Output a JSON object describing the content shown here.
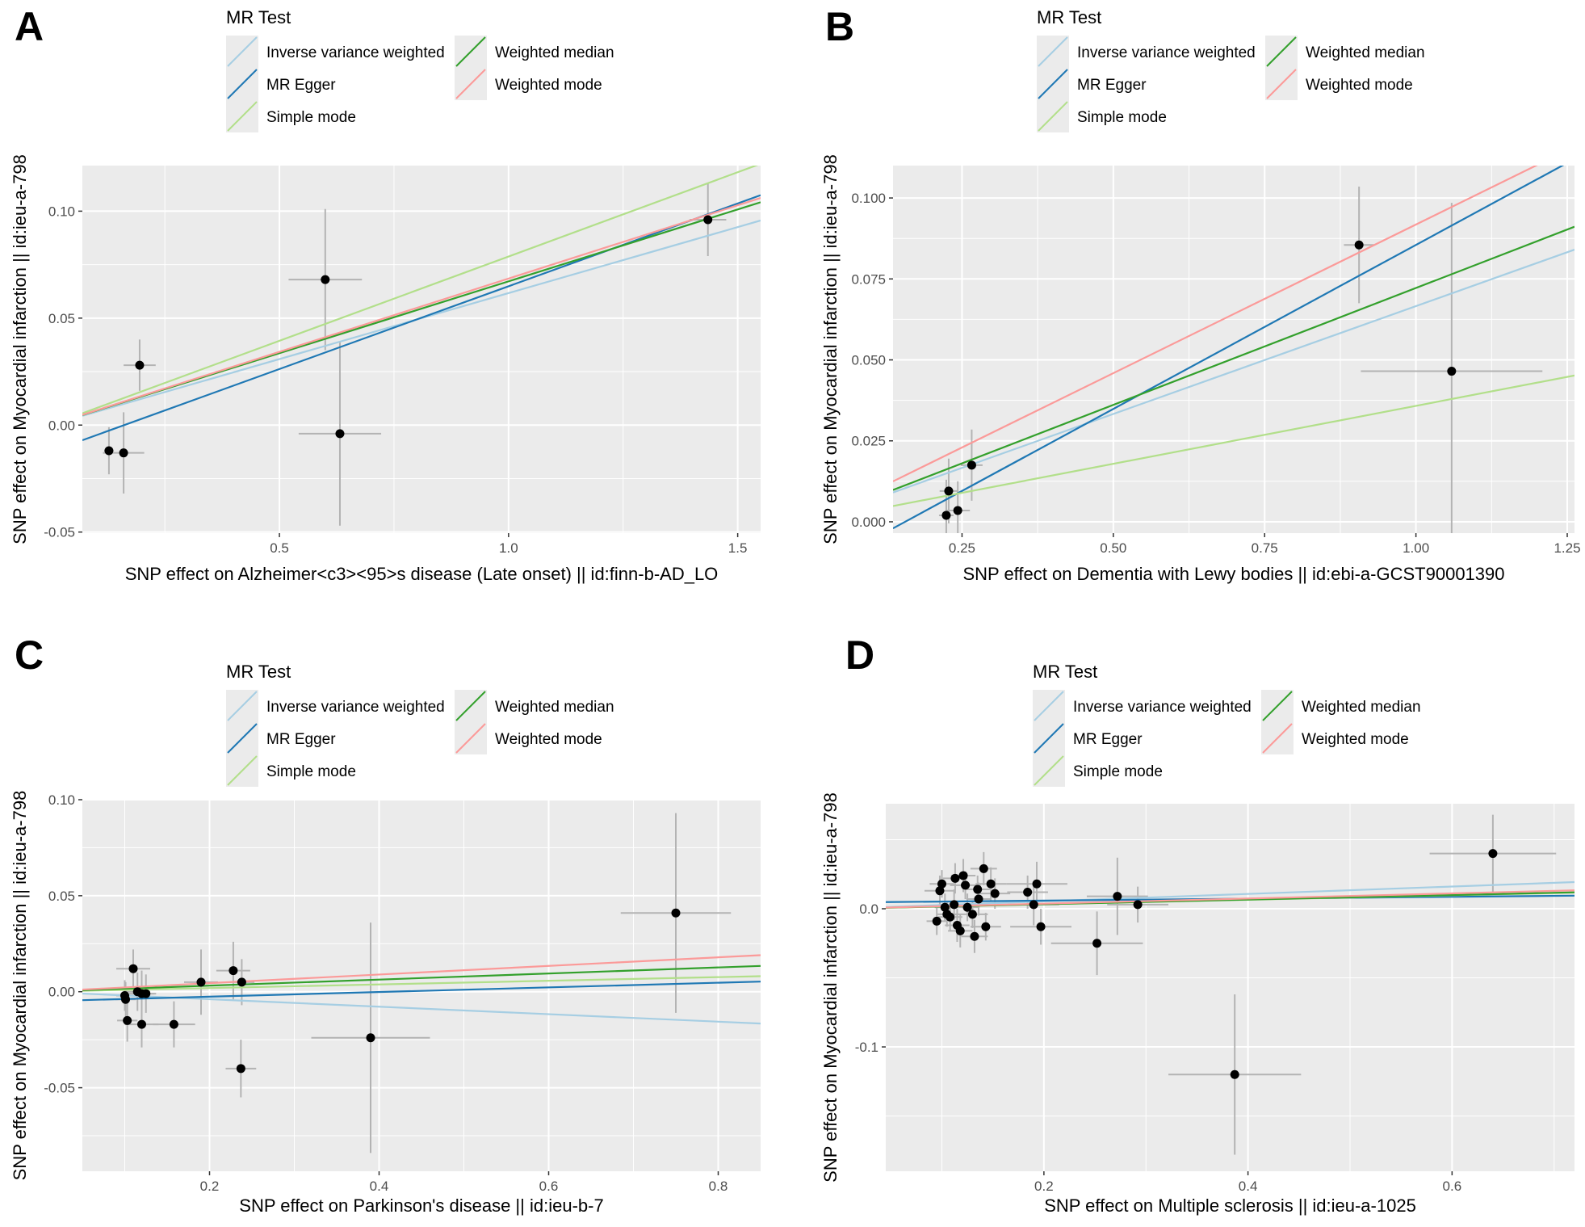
{
  "legend": {
    "title": "MR Test",
    "entries": [
      {
        "key": "ivw",
        "label": "Inverse variance weighted",
        "color": "#a6cee3"
      },
      {
        "key": "egger",
        "label": "MR Egger",
        "color": "#1f78b4"
      },
      {
        "key": "simple",
        "label": "Simple mode",
        "color": "#b2df8a"
      },
      {
        "key": "median",
        "label": "Weighted median",
        "color": "#33a02c"
      },
      {
        "key": "wmode",
        "label": "Weighted mode",
        "color": "#fb9a99"
      }
    ]
  },
  "colors": {
    "panel_bg": "#ebebeb",
    "grid": "#ffffff",
    "point": "#000000",
    "errorbar": "#b3b3b3",
    "axis_text": "#4d4d4d"
  },
  "chart_data": [
    {
      "panel_label": "A",
      "type": "scatter",
      "xlabel": "SNP effect on Alzheimer<c3><95>s disease (Late onset) || id:finn-b-AD_LO",
      "ylabel": "SNP effect on Myocardial infarction || id:ieu-a-798",
      "xlim": [
        0.07,
        1.55
      ],
      "ylim": [
        -0.0505,
        0.1213
      ],
      "xticks": [
        {
          "v": 0.5,
          "label": "0.5"
        },
        {
          "v": 1.0,
          "label": "1.0"
        },
        {
          "v": 1.5,
          "label": "1.5"
        }
      ],
      "xminor": [
        0.25,
        0.75,
        1.25
      ],
      "yticks": [
        {
          "v": -0.05,
          "label": "-0.05"
        },
        {
          "v": 0.0,
          "label": "0.00"
        },
        {
          "v": 0.05,
          "label": "0.05"
        },
        {
          "v": 0.1,
          "label": "0.10"
        }
      ],
      "yminor": [
        -0.025,
        0.025,
        0.075
      ],
      "points": [
        {
          "x": 0.128,
          "y": -0.012,
          "xse": 0.01,
          "yse": 0.011
        },
        {
          "x": 0.16,
          "y": -0.013,
          "xse": 0.045,
          "yse": 0.019
        },
        {
          "x": 0.195,
          "y": 0.028,
          "xse": 0.035,
          "yse": 0.012
        },
        {
          "x": 0.6,
          "y": 0.068,
          "xse": 0.08,
          "yse": 0.033
        },
        {
          "x": 0.632,
          "y": -0.004,
          "xse": 0.09,
          "yse": 0.043
        },
        {
          "x": 1.435,
          "y": 0.096,
          "xse": 0.04,
          "yse": 0.017
        }
      ],
      "lines": {
        "ivw": 0.0617,
        "egger": [
          -0.0125,
          0.0774
        ],
        "simple": 0.0788,
        "median": 0.0672,
        "wmode": 0.0685
      }
    },
    {
      "panel_label": "B",
      "type": "scatter",
      "xlabel": "SNP effect on Dementia with Lewy bodies || id:ebi-a-GCST90001390",
      "ylabel": "SNP effect on Myocardial infarction || id:ieu-a-798",
      "xlim": [
        0.136,
        1.262
      ],
      "ylim": [
        -0.0035,
        0.11
      ],
      "xticks": [
        {
          "v": 0.25,
          "label": "0.25"
        },
        {
          "v": 0.5,
          "label": "0.50"
        },
        {
          "v": 0.75,
          "label": "0.75"
        },
        {
          "v": 1.0,
          "label": "1.00"
        },
        {
          "v": 1.25,
          "label": "1.25"
        }
      ],
      "xminor": [
        0.375,
        0.625,
        0.875,
        1.125
      ],
      "yticks": [
        {
          "v": 0.0,
          "label": "0.000"
        },
        {
          "v": 0.025,
          "label": "0.025"
        },
        {
          "v": 0.05,
          "label": "0.050"
        },
        {
          "v": 0.075,
          "label": "0.075"
        },
        {
          "v": 0.1,
          "label": "0.100"
        }
      ],
      "yminor": [
        0.0125,
        0.0375,
        0.0625,
        0.0875
      ],
      "points": [
        {
          "x": 0.224,
          "y": 0.002,
          "xse": 0.012,
          "yse": 0.011
        },
        {
          "x": 0.228,
          "y": 0.0095,
          "xse": 0.015,
          "yse": 0.01
        },
        {
          "x": 0.243,
          "y": 0.0035,
          "xse": 0.02,
          "yse": 0.009
        },
        {
          "x": 0.266,
          "y": 0.0175,
          "xse": 0.018,
          "yse": 0.011
        },
        {
          "x": 0.906,
          "y": 0.0855,
          "xse": 0.025,
          "yse": 0.018
        },
        {
          "x": 1.059,
          "y": 0.0465,
          "xse": 0.15,
          "yse": 0.052
        }
      ],
      "lines": {
        "ivw": 0.0666,
        "egger": [
          -0.0158,
          0.1013
        ],
        "simple": 0.0358,
        "median": 0.0722,
        "wmode": 0.0918
      }
    },
    {
      "panel_label": "C",
      "type": "scatter",
      "xlabel": "SNP effect on Parkinson's disease || id:ieu-b-7",
      "ylabel": "SNP effect on Myocardial infarction || id:ieu-a-798",
      "xlim": [
        0.05,
        0.85
      ],
      "ylim": [
        -0.0935,
        0.1
      ],
      "xticks": [
        {
          "v": 0.2,
          "label": "0.2"
        },
        {
          "v": 0.4,
          "label": "0.4"
        },
        {
          "v": 0.6,
          "label": "0.6"
        },
        {
          "v": 0.8,
          "label": "0.8"
        }
      ],
      "xminor": [
        0.1,
        0.3,
        0.5,
        0.7
      ],
      "yticks": [
        {
          "v": -0.05,
          "label": "-0.05"
        },
        {
          "v": 0.0,
          "label": "0.00"
        },
        {
          "v": 0.05,
          "label": "0.05"
        },
        {
          "v": 0.1,
          "label": "0.10"
        }
      ],
      "yminor": [
        -0.075,
        -0.025,
        0.025,
        0.075
      ],
      "points": [
        {
          "x": 0.1,
          "y": -0.002,
          "xse": 0.01,
          "yse": 0.008
        },
        {
          "x": 0.101,
          "y": -0.004,
          "xse": 0.012,
          "yse": 0.009
        },
        {
          "x": 0.103,
          "y": -0.015,
          "xse": 0.012,
          "yse": 0.011
        },
        {
          "x": 0.11,
          "y": 0.012,
          "xse": 0.02,
          "yse": 0.01
        },
        {
          "x": 0.115,
          "y": 0.0,
          "xse": 0.015,
          "yse": 0.01
        },
        {
          "x": 0.12,
          "y": -0.001,
          "xse": 0.015,
          "yse": 0.012
        },
        {
          "x": 0.125,
          "y": -0.001,
          "xse": 0.012,
          "yse": 0.01
        },
        {
          "x": 0.12,
          "y": -0.017,
          "xse": 0.02,
          "yse": 0.012
        },
        {
          "x": 0.158,
          "y": -0.017,
          "xse": 0.025,
          "yse": 0.012
        },
        {
          "x": 0.19,
          "y": 0.005,
          "xse": 0.02,
          "yse": 0.017
        },
        {
          "x": 0.228,
          "y": 0.011,
          "xse": 0.02,
          "yse": 0.015
        },
        {
          "x": 0.238,
          "y": 0.005,
          "xse": 0.015,
          "yse": 0.012
        },
        {
          "x": 0.237,
          "y": -0.04,
          "xse": 0.018,
          "yse": 0.015
        },
        {
          "x": 0.39,
          "y": -0.024,
          "xse": 0.07,
          "yse": 0.06
        },
        {
          "x": 0.75,
          "y": 0.041,
          "xse": 0.065,
          "yse": 0.052
        }
      ],
      "lines": {
        "ivw": -0.0195,
        "egger": [
          -0.005,
          0.0121
        ],
        "simple": 0.0095,
        "median": 0.0158,
        "wmode": 0.0224
      }
    },
    {
      "panel_label": "D",
      "type": "scatter",
      "xlabel": "SNP effect on Multiple sclerosis || id:ieu-a-1025",
      "ylabel": "SNP effect on Myocardial infarction || id:ieu-a-798",
      "xlim": [
        0.045,
        0.72
      ],
      "ylim": [
        -0.19,
        0.076
      ],
      "xticks": [
        {
          "v": 0.2,
          "label": "0.2"
        },
        {
          "v": 0.4,
          "label": "0.4"
        },
        {
          "v": 0.6,
          "label": "0.6"
        }
      ],
      "xminor": [
        0.1,
        0.3,
        0.5,
        0.7
      ],
      "yticks": [
        {
          "v": -0.1,
          "label": "-0.1"
        },
        {
          "v": 0.0,
          "label": "0.0"
        }
      ],
      "yminor": [
        -0.15,
        -0.05,
        0.05
      ],
      "points": [
        {
          "x": 0.098,
          "y": 0.013,
          "xse": 0.015,
          "yse": 0.011
        },
        {
          "x": 0.1,
          "y": 0.018,
          "xse": 0.012,
          "yse": 0.01
        },
        {
          "x": 0.103,
          "y": 0.001,
          "xse": 0.01,
          "yse": 0.01
        },
        {
          "x": 0.105,
          "y": -0.004,
          "xse": 0.01,
          "yse": 0.009
        },
        {
          "x": 0.095,
          "y": -0.009,
          "xse": 0.01,
          "yse": 0.01
        },
        {
          "x": 0.108,
          "y": -0.006,
          "xse": 0.012,
          "yse": 0.01
        },
        {
          "x": 0.113,
          "y": 0.022,
          "xse": 0.012,
          "yse": 0.011
        },
        {
          "x": 0.112,
          "y": 0.003,
          "xse": 0.015,
          "yse": 0.011
        },
        {
          "x": 0.115,
          "y": -0.012,
          "xse": 0.012,
          "yse": 0.012
        },
        {
          "x": 0.118,
          "y": -0.016,
          "xse": 0.012,
          "yse": 0.012
        },
        {
          "x": 0.121,
          "y": 0.024,
          "xse": 0.012,
          "yse": 0.012
        },
        {
          "x": 0.123,
          "y": 0.017,
          "xse": 0.015,
          "yse": 0.01
        },
        {
          "x": 0.125,
          "y": 0.001,
          "xse": 0.012,
          "yse": 0.01
        },
        {
          "x": 0.13,
          "y": -0.004,
          "xse": 0.015,
          "yse": 0.01
        },
        {
          "x": 0.132,
          "y": -0.02,
          "xse": 0.013,
          "yse": 0.012
        },
        {
          "x": 0.135,
          "y": 0.014,
          "xse": 0.012,
          "yse": 0.01
        },
        {
          "x": 0.136,
          "y": 0.007,
          "xse": 0.012,
          "yse": 0.012
        },
        {
          "x": 0.141,
          "y": 0.029,
          "xse": 0.013,
          "yse": 0.012
        },
        {
          "x": 0.143,
          "y": -0.013,
          "xse": 0.015,
          "yse": 0.01
        },
        {
          "x": 0.148,
          "y": 0.018,
          "xse": 0.015,
          "yse": 0.012
        },
        {
          "x": 0.152,
          "y": 0.011,
          "xse": 0.015,
          "yse": 0.011
        },
        {
          "x": 0.184,
          "y": 0.012,
          "xse": 0.02,
          "yse": 0.012
        },
        {
          "x": 0.19,
          "y": 0.003,
          "xse": 0.025,
          "yse": 0.015
        },
        {
          "x": 0.193,
          "y": 0.018,
          "xse": 0.03,
          "yse": 0.016
        },
        {
          "x": 0.197,
          "y": -0.013,
          "xse": 0.03,
          "yse": 0.013
        },
        {
          "x": 0.252,
          "y": -0.025,
          "xse": 0.045,
          "yse": 0.023
        },
        {
          "x": 0.272,
          "y": 0.009,
          "xse": 0.03,
          "yse": 0.028
        },
        {
          "x": 0.292,
          "y": 0.003,
          "xse": 0.03,
          "yse": 0.013
        },
        {
          "x": 0.387,
          "y": -0.12,
          "xse": 0.065,
          "yse": 0.058
        },
        {
          "x": 0.64,
          "y": 0.04,
          "xse": 0.062,
          "yse": 0.028
        }
      ],
      "lines": {
        "ivw": 0.0268,
        "egger": [
          0.0045,
          0.0069
        ],
        "simple": 0.0162,
        "median": 0.0165,
        "wmode": 0.0185
      }
    }
  ]
}
